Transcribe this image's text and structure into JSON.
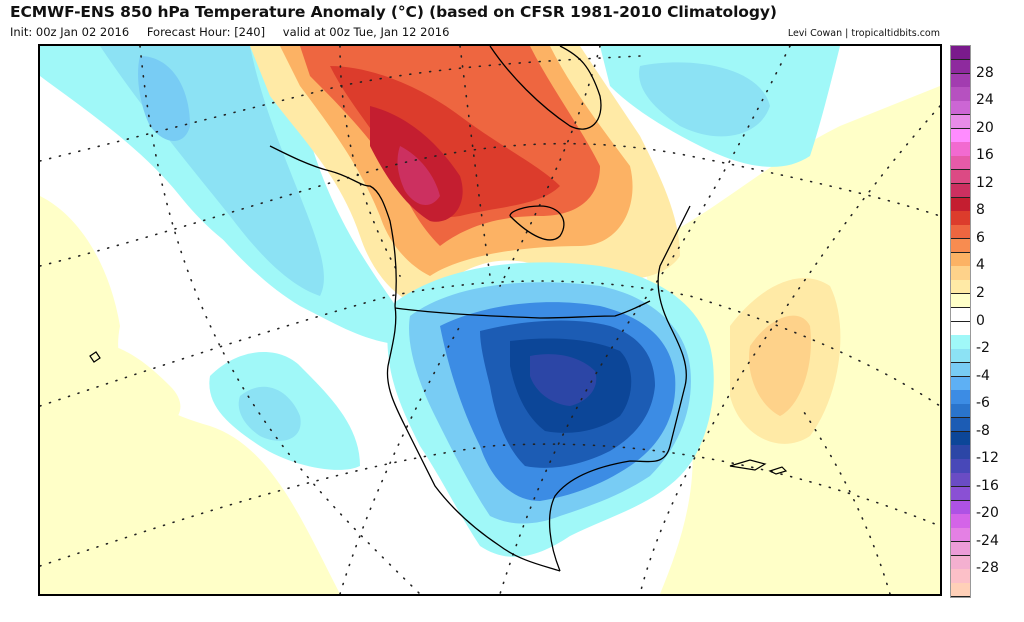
{
  "header": {
    "title": "ECMWF-ENS 850 hPa Temperature Anomaly (°C) (based on CFSR 1981-2010 Climatology)",
    "init": "Init: 00z Jan 02 2016",
    "forecast_hour": "Forecast Hour: [240]",
    "valid": "valid at 00z Tue, Jan 12 2016",
    "credit": "Levi Cowan | tropicaltidbits.com"
  },
  "map": {
    "variable": "850 hPa Temperature Anomaly",
    "units": "°C",
    "region": "North America / North Pacific / North Atlantic",
    "features": [
      {
        "name": "warm-anomaly-alaska-canada",
        "label": "Strong warm anomaly over Alaska, Yukon and northern Canada",
        "approx_anomaly": 10
      },
      {
        "name": "cold-anomaly-conus",
        "label": "Strong cold anomaly centered over central United States",
        "approx_anomaly": -12
      },
      {
        "name": "cool-anomaly-north-pacific",
        "label": "Weak cool anomaly over North Pacific",
        "approx_anomaly": -3
      },
      {
        "name": "cool-anomaly-north-atlantic",
        "label": "Weak cool anomaly south of Greenland",
        "approx_anomaly": -3
      },
      {
        "name": "warm-anomaly-atlantic",
        "label": "Weak warm anomaly over central Atlantic",
        "approx_anomaly": 3
      }
    ]
  },
  "colorbar": {
    "segments": [
      {
        "color": "#7a1a8c"
      },
      {
        "color": "#8e2a9e"
      },
      {
        "color": "#a23cb0"
      },
      {
        "color": "#b651c0"
      },
      {
        "color": "#cc66d4"
      },
      {
        "color": "#e88ce8"
      },
      {
        "color": "#ff8cff"
      },
      {
        "color": "#f26ad0"
      },
      {
        "color": "#e65aa8"
      },
      {
        "color": "#dc4a84"
      },
      {
        "color": "#cc3060"
      },
      {
        "color": "#c41e30"
      },
      {
        "color": "#dc3c2c"
      },
      {
        "color": "#ee6640"
      },
      {
        "color": "#f88c50"
      },
      {
        "color": "#fcb264"
      },
      {
        "color": "#fed28a"
      },
      {
        "color": "#ffeaa6"
      },
      {
        "color": "#ffffc8"
      },
      {
        "color": "#ffffff"
      },
      {
        "color": "#ffffff"
      },
      {
        "color": "#a0f8f8"
      },
      {
        "color": "#8ce2f4"
      },
      {
        "color": "#78ccf4"
      },
      {
        "color": "#5eb0f4"
      },
      {
        "color": "#3c8ce4"
      },
      {
        "color": "#2a74cc"
      },
      {
        "color": "#1c5cb4"
      },
      {
        "color": "#0c4698"
      },
      {
        "color": "#2c46a6"
      },
      {
        "color": "#4848b8"
      },
      {
        "color": "#6a4cc4"
      },
      {
        "color": "#8a50d4"
      },
      {
        "color": "#ae52e4"
      },
      {
        "color": "#d464e8"
      },
      {
        "color": "#e480e4"
      },
      {
        "color": "#ec9cd8"
      },
      {
        "color": "#f4b0d0"
      },
      {
        "color": "#fcc0c8"
      },
      {
        "color": "#ffd0b8"
      }
    ],
    "labels": [
      "28",
      "24",
      "20",
      "16",
      "12",
      "8",
      "6",
      "4",
      "2",
      "0",
      "-2",
      "-4",
      "-6",
      "-8",
      "-12",
      "-16",
      "-20",
      "-24",
      "-28"
    ]
  }
}
